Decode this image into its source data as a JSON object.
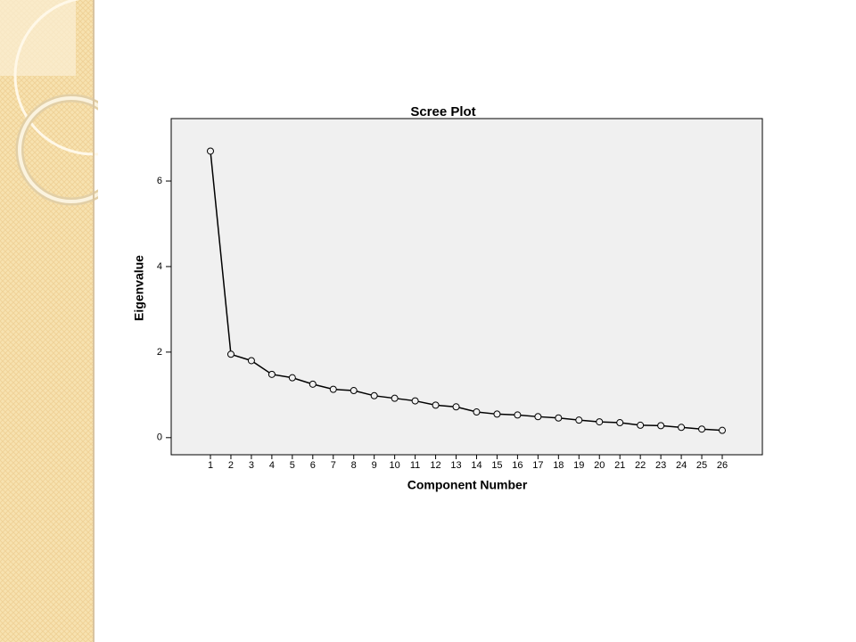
{
  "chart_data": {
    "type": "line",
    "title": "Scree Plot",
    "x_label": "Component Number",
    "y_label": "Eigenvalue",
    "categories": [
      "1",
      "2",
      "3",
      "4",
      "5",
      "6",
      "7",
      "8",
      "9",
      "10",
      "11",
      "12",
      "13",
      "14",
      "15",
      "16",
      "17",
      "18",
      "19",
      "20",
      "21",
      "22",
      "23",
      "24",
      "25",
      "26"
    ],
    "values": [
      6.7,
      1.95,
      1.8,
      1.48,
      1.4,
      1.25,
      1.13,
      1.1,
      0.98,
      0.92,
      0.86,
      0.76,
      0.72,
      0.6,
      0.55,
      0.53,
      0.49,
      0.46,
      0.41,
      0.37,
      0.35,
      0.29,
      0.28,
      0.24,
      0.2,
      0.17
    ],
    "color": "#000000",
    "ylim": [
      -0.4,
      7.46
    ],
    "yticks": [
      0,
      2,
      4,
      6
    ],
    "grid": false
  }
}
